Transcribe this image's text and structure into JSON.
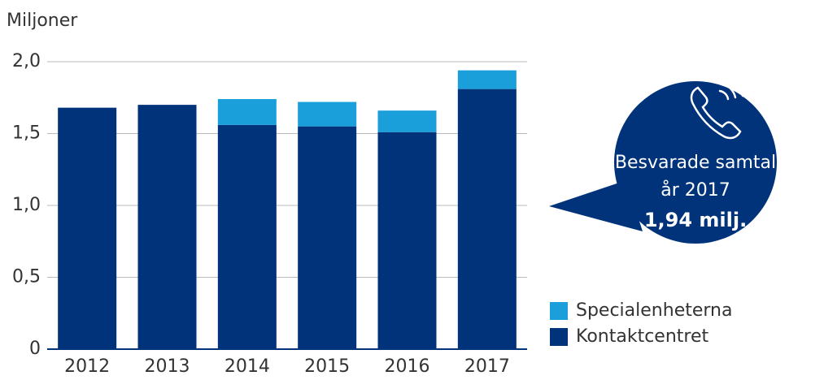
{
  "chart_data": {
    "type": "stacked_bar",
    "y_axis_label": "Miljoner",
    "categories": [
      "2012",
      "2013",
      "2014",
      "2015",
      "2016",
      "2017"
    ],
    "series": [
      {
        "name": "Kontaktcentret",
        "color": "#00337a",
        "values": [
          1.68,
          1.7,
          1.56,
          1.55,
          1.51,
          1.81
        ]
      },
      {
        "name": "Specialenheterna",
        "color": "#1a9fdb",
        "values": [
          0,
          0,
          0.18,
          0.17,
          0.15,
          0.13
        ]
      }
    ],
    "ylim": [
      0,
      2.0
    ],
    "yticks": [
      {
        "value": 0,
        "label": "0"
      },
      {
        "value": 0.5,
        "label": "0,5"
      },
      {
        "value": 1.0,
        "label": "1,0"
      },
      {
        "value": 1.5,
        "label": "1,5"
      },
      {
        "value": 2.0,
        "label": "2,0"
      }
    ],
    "grid": true,
    "annotation": {
      "lines": [
        "Besvarade samtal",
        "år 2017"
      ],
      "highlight": "1,94 milj."
    }
  }
}
